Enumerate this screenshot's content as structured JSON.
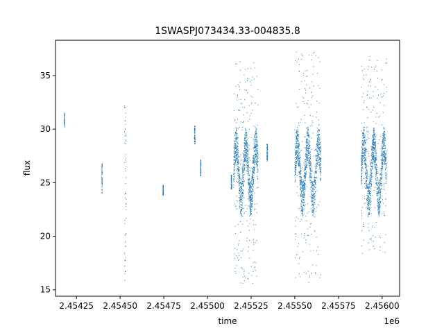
{
  "chart_data": {
    "type": "scatter",
    "title": "1SWASPJ073434.33-004835.8",
    "xlabel": "time",
    "ylabel": "flux",
    "x_offset_label": "1e6",
    "xlim": [
      2.45413,
      2.4561
    ],
    "ylim": [
      14.4,
      38.3
    ],
    "x_ticks": [
      2.45425,
      2.4545,
      2.45475,
      2.455,
      2.45525,
      2.4555,
      2.45575,
      2.456
    ],
    "x_tick_labels": [
      "2.45425",
      "2.45450",
      "2.45475",
      "2.45500",
      "2.45525",
      "2.45550",
      "2.45575",
      "2.45600"
    ],
    "y_ticks": [
      15,
      20,
      25,
      30,
      35
    ],
    "y_tick_labels": [
      "15",
      "20",
      "25",
      "30",
      "35"
    ],
    "grid": false,
    "legend": "none",
    "marker_color": "#1f77b4",
    "clusters": [
      {
        "x": [
          2.45418,
          2.454182
        ],
        "y": [
          30.2,
          31.5
        ]
      },
      {
        "x": [
          2.454395,
          2.454398
        ],
        "y": [
          24.0,
          26.8
        ]
      },
      {
        "x": [
          2.454525,
          2.454535
        ],
        "y": [
          15.8,
          32.3
        ]
      },
      {
        "x": [
          2.454745,
          2.454748
        ],
        "y": [
          23.8,
          24.8
        ]
      },
      {
        "x": [
          2.454925,
          2.45493
        ],
        "y": [
          28.6,
          30.3
        ]
      },
      {
        "x": [
          2.45496,
          2.454963
        ],
        "y": [
          25.6,
          27.2
        ]
      },
      {
        "x": [
          2.455135,
          2.45514
        ],
        "y": [
          24.4,
          25.8
        ]
      },
      {
        "x": [
          2.45515,
          2.45529
        ],
        "y": [
          15.5,
          36.3
        ]
      },
      {
        "x": [
          2.45534,
          2.455345
        ],
        "y": [
          27.0,
          28.6
        ]
      },
      {
        "x": [
          2.4555,
          2.45565
        ],
        "y": [
          15.5,
          37.2
        ]
      },
      {
        "x": [
          2.45588,
          2.456025
        ],
        "y": [
          18.4,
          37.1
        ]
      }
    ]
  }
}
